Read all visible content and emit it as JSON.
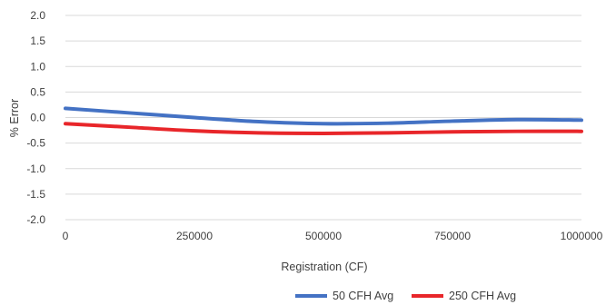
{
  "chart_data": {
    "type": "line",
    "title": "",
    "xlabel": "Registration (CF)",
    "ylabel": "% Error",
    "xlim": [
      0,
      1000000
    ],
    "ylim": [
      -2.0,
      2.0
    ],
    "x_ticks": [
      "0",
      "250000",
      "500000",
      "750000",
      "1000000"
    ],
    "y_ticks": [
      "2.0",
      "1.5",
      "1.0",
      "0.5",
      "0.0",
      "-0.5",
      "-1.0",
      "-1.5",
      "-2.0"
    ],
    "grid": "horizontal",
    "legend_position": "bottom-right",
    "series": [
      {
        "name": "50 CFH Avg",
        "color": "#4472C4",
        "x": [
          0,
          125000,
          250000,
          375000,
          500000,
          625000,
          750000,
          875000,
          1000000
        ],
        "y": [
          0.18,
          0.09,
          0.0,
          -0.08,
          -0.12,
          -0.11,
          -0.07,
          -0.04,
          -0.05
        ]
      },
      {
        "name": "250 CFH Avg",
        "color": "#E8262A",
        "x": [
          0,
          125000,
          250000,
          375000,
          500000,
          625000,
          750000,
          875000,
          1000000
        ],
        "y": [
          -0.12,
          -0.19,
          -0.26,
          -0.3,
          -0.31,
          -0.3,
          -0.28,
          -0.27,
          -0.27
        ]
      }
    ]
  }
}
